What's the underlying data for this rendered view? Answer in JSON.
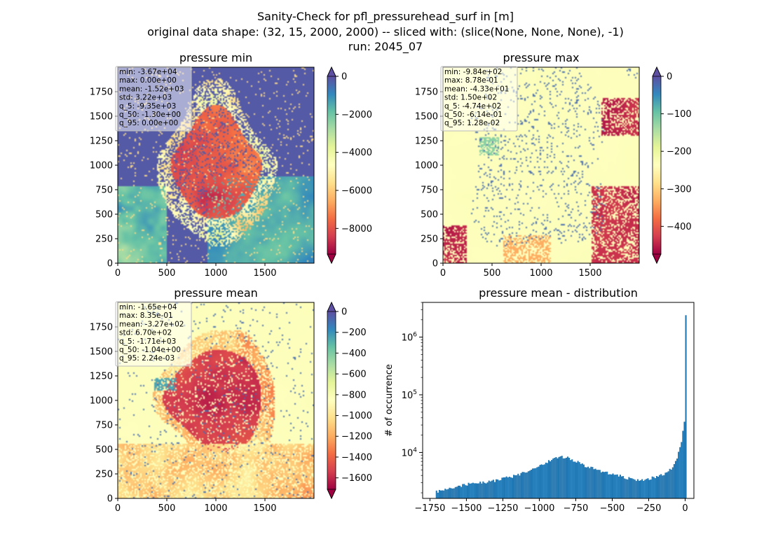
{
  "figure": {
    "title_lines": [
      "Sanity-Check for pfl_pressurehead_surf in [m]",
      "original data shape: (32, 15, 2000, 2000) -- sliced with: (slice(None, None, None), -1)",
      "run: 2045_07"
    ]
  },
  "chart_data": [
    {
      "type": "heatmap",
      "title": "pressure min",
      "xlim": [
        0,
        2000
      ],
      "ylim": [
        0,
        2000
      ],
      "xticks": [
        "0",
        "500",
        "1000",
        "1500"
      ],
      "yticks": [
        "0",
        "250",
        "500",
        "750",
        "1000",
        "1250",
        "1500",
        "1750"
      ],
      "colormap": "Spectral",
      "colorbar": {
        "range": [
          -9350,
          0
        ],
        "ticks": [
          "0",
          "−2000",
          "−4000",
          "−6000",
          "−8000"
        ],
        "tick_values": [
          0,
          -2000,
          -4000,
          -6000,
          -8000
        ],
        "extend": "both"
      },
      "stats": [
        "min: -3.67e+04",
        "max: 0.00e+00",
        "mean: -1.52e+03",
        "std: 3.22e+03",
        "q_5: -9.35e+03",
        "q_50: -1.30e+00",
        "q_95: 0.00e+00"
      ]
    },
    {
      "type": "heatmap",
      "title": "pressure max",
      "xlim": [
        0,
        2000
      ],
      "ylim": [
        0,
        2000
      ],
      "xticks": [
        "0",
        "500",
        "1000",
        "1500"
      ],
      "yticks": [
        "0",
        "250",
        "500",
        "750",
        "1000",
        "1250",
        "1500",
        "1750"
      ],
      "colormap": "Spectral",
      "colorbar": {
        "range": [
          -474,
          0
        ],
        "ticks": [
          "0",
          "−100",
          "−200",
          "−300",
          "−400"
        ],
        "tick_values": [
          0,
          -100,
          -200,
          -300,
          -400
        ],
        "extend": "both"
      },
      "stats": [
        "min: -9.84e+02",
        "max: 8.78e-01",
        "mean: -4.33e+01",
        "std: 1.50e+02",
        "q_5: -4.74e+02",
        "q_50: -6.14e-01",
        "q_95: 1.28e-02"
      ]
    },
    {
      "type": "heatmap",
      "title": "pressure mean",
      "xlim": [
        0,
        2000
      ],
      "ylim": [
        0,
        2000
      ],
      "xticks": [
        "0",
        "500",
        "1000",
        "1500"
      ],
      "yticks": [
        "0",
        "250",
        "500",
        "750",
        "1000",
        "1250",
        "1500",
        "1750"
      ],
      "colormap": "Spectral",
      "colorbar": {
        "range": [
          -1710,
          0
        ],
        "ticks": [
          "0",
          "−200",
          "−400",
          "−600",
          "−800",
          "−1000",
          "−1200",
          "−1400",
          "−1600"
        ],
        "tick_values": [
          0,
          -200,
          -400,
          -600,
          -800,
          -1000,
          -1200,
          -1400,
          -1600
        ],
        "extend": "both"
      },
      "stats": [
        "min: -1.65e+04",
        "max: 8.35e-01",
        "mean: -3.27e+02",
        "std: 6.70e+02",
        "q_5: -1.71e+03",
        "q_50: -1.04e+00",
        "q_95: 2.24e-03"
      ]
    },
    {
      "type": "bar",
      "title": "pressure mean - distribution",
      "ylabel": "# of occurrence",
      "yscale": "log",
      "xlim": [
        -1800,
        60
      ],
      "ylim": [
        1600,
        4000000
      ],
      "xticks": [
        "−1750",
        "−1500",
        "−1250",
        "−1000",
        "−750",
        "−500",
        "−250",
        "0"
      ],
      "xtick_values": [
        -1750,
        -1500,
        -1250,
        -1000,
        -750,
        -500,
        -250,
        0
      ],
      "yticks": [
        "10^4",
        "10^5",
        "10^6"
      ],
      "ytick_values": [
        10000,
        100000,
        1000000
      ],
      "color": "#1f77b4",
      "x": [
        -1710,
        -1600,
        -1500,
        -1400,
        -1300,
        -1200,
        -1100,
        -1000,
        -950,
        -900,
        -850,
        -800,
        -750,
        -700,
        -650,
        -600,
        -550,
        -500,
        -450,
        -400,
        -350,
        -300,
        -250,
        -200,
        -150,
        -100,
        -60,
        -30,
        -15,
        -8,
        -3,
        0
      ],
      "values": [
        2100,
        2500,
        2800,
        3000,
        3300,
        3800,
        4500,
        5800,
        6800,
        7800,
        8500,
        8000,
        7000,
        6000,
        5500,
        5000,
        4500,
        4200,
        3900,
        3600,
        3400,
        3300,
        3500,
        3800,
        4300,
        5200,
        8000,
        15000,
        32000,
        35000,
        30000,
        2400000
      ]
    }
  ]
}
